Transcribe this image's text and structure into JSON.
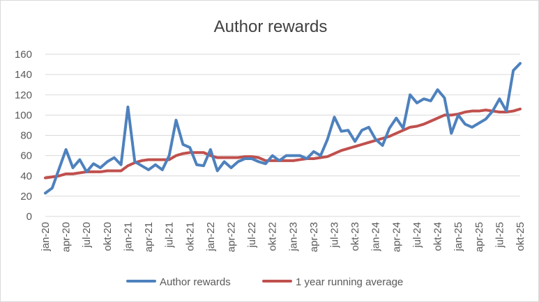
{
  "chart_data": {
    "type": "line",
    "title": "Author rewards",
    "xlabel": "",
    "ylabel": "",
    "ylim": [
      0,
      160
    ],
    "yticks": [
      0,
      20,
      40,
      60,
      80,
      100,
      120,
      140,
      160
    ],
    "grid": true,
    "legend_position": "bottom",
    "x": [
      "jan-20",
      "feb-20",
      "mar-20",
      "apr-20",
      "maj-20",
      "jun-20",
      "jul-20",
      "aug-20",
      "sep-20",
      "okt-20",
      "nov-20",
      "dec-20",
      "jan-21",
      "feb-21",
      "mar-21",
      "apr-21",
      "maj-21",
      "jun-21",
      "jul-21",
      "aug-21",
      "sep-21",
      "okt-21",
      "nov-21",
      "dec-21",
      "jan-22",
      "feb-22",
      "mar-22",
      "apr-22",
      "maj-22",
      "jun-22",
      "jul-22",
      "aug-22",
      "sep-22",
      "okt-22",
      "nov-22",
      "dec-22",
      "jan-23",
      "feb-23",
      "mar-23",
      "apr-23",
      "maj-23",
      "jun-23",
      "jul-23",
      "aug-23",
      "sep-23",
      "okt-23",
      "nov-23",
      "dec-23",
      "jan-24",
      "feb-24",
      "mar-24",
      "apr-24",
      "maj-24",
      "jun-24",
      "jul-24",
      "aug-24",
      "sep-24",
      "okt-24",
      "nov-24",
      "dec-24",
      "jan-25",
      "feb-25",
      "mar-25",
      "apr-25",
      "maj-25",
      "jun-25",
      "jul-25",
      "aug-25",
      "sep-25",
      "okt-25"
    ],
    "tick_labels": [
      "jan-20",
      "apr-20",
      "jul-20",
      "okt-20",
      "jan-21",
      "apr-21",
      "jul-21",
      "okt-21",
      "jan-22",
      "apr-22",
      "jul-22",
      "okt-22",
      "jan-23",
      "apr-23",
      "jul-23",
      "okt-23",
      "jan-24",
      "apr-24",
      "jul-24",
      "okt-24",
      "jan-25",
      "apr-25",
      "jul-25",
      "okt-25"
    ],
    "series": [
      {
        "name": "Author rewards",
        "color": "#4e81bd",
        "values": [
          23,
          28,
          47,
          66,
          48,
          56,
          44,
          52,
          48,
          54,
          58,
          51,
          108,
          54,
          50,
          46,
          51,
          46,
          60,
          95,
          71,
          68,
          51,
          50,
          66,
          45,
          54,
          48,
          54,
          57,
          57,
          54,
          52,
          60,
          55,
          60,
          60,
          60,
          57,
          64,
          60,
          76,
          98,
          84,
          85,
          74,
          85,
          88,
          76,
          70,
          87,
          97,
          87,
          120,
          112,
          116,
          114,
          125,
          117,
          82,
          100,
          91,
          88,
          92,
          96,
          104,
          116,
          104,
          144,
          151
        ]
      },
      {
        "name": "1 year running average",
        "color": "#c0504d",
        "values": [
          38,
          39,
          40,
          42,
          42,
          43,
          44,
          44,
          44,
          45,
          45,
          45,
          50,
          53,
          55,
          56,
          56,
          56,
          56,
          60,
          62,
          63,
          63,
          63,
          60,
          58,
          58,
          58,
          58,
          59,
          59,
          58,
          55,
          55,
          55,
          55,
          55,
          56,
          57,
          57,
          58,
          59,
          62,
          65,
          67,
          69,
          71,
          73,
          75,
          77,
          79,
          82,
          85,
          88,
          89,
          91,
          94,
          97,
          100,
          100,
          101,
          103,
          104,
          104,
          105,
          104,
          103,
          103,
          104,
          106
        ]
      }
    ]
  }
}
